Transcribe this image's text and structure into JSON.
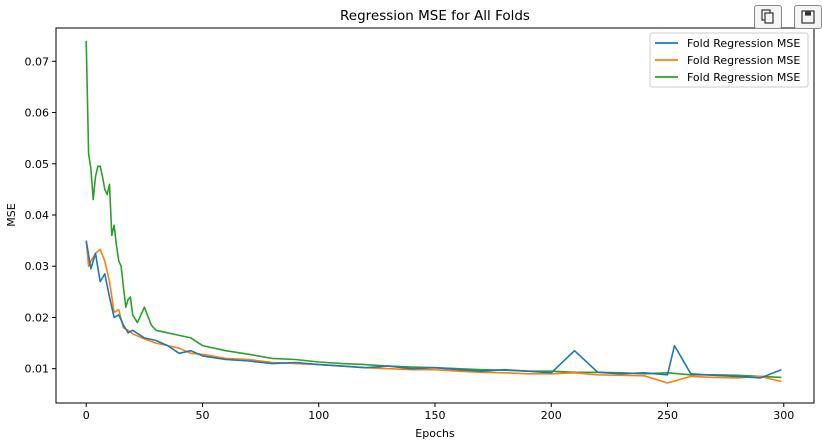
{
  "toolbar": {
    "copy_icon": "copy-icon",
    "save_icon": "floppy-disk-icon"
  },
  "chart_data": {
    "type": "line",
    "title": "Regression MSE for All Folds",
    "xlabel": "Epochs",
    "ylabel": "MSE",
    "xlim": [
      -13,
      313
    ],
    "ylim": [
      0.0033,
      0.0765
    ],
    "xticks": [
      0,
      50,
      100,
      150,
      200,
      250,
      300
    ],
    "xtick_labels": [
      "0",
      "50",
      "100",
      "150",
      "200",
      "250",
      "300"
    ],
    "yticks": [
      0.01,
      0.02,
      0.03,
      0.04,
      0.05,
      0.06,
      0.07
    ],
    "ytick_labels": [
      "0.01",
      "0.02",
      "0.03",
      "0.04",
      "0.05",
      "0.06",
      "0.07"
    ],
    "grid": false,
    "legend_position": "top-right",
    "series": [
      {
        "name": "Fold Regression MSE",
        "color": "#1f77b4",
        "x": [
          0,
          2,
          4,
          6,
          8,
          10,
          12,
          14,
          16,
          18,
          20,
          25,
          30,
          35,
          40,
          45,
          50,
          60,
          70,
          80,
          90,
          100,
          110,
          120,
          130,
          140,
          150,
          160,
          170,
          180,
          190,
          200,
          210,
          220,
          230,
          240,
          250,
          253,
          260,
          270,
          280,
          290,
          299
        ],
        "y": [
          0.035,
          0.0295,
          0.0325,
          0.027,
          0.0285,
          0.024,
          0.02,
          0.0205,
          0.0185,
          0.017,
          0.0175,
          0.016,
          0.0155,
          0.0145,
          0.013,
          0.0135,
          0.0125,
          0.0118,
          0.0115,
          0.011,
          0.0112,
          0.0108,
          0.0105,
          0.0102,
          0.0105,
          0.01,
          0.0102,
          0.0098,
          0.0095,
          0.0098,
          0.0095,
          0.0092,
          0.0135,
          0.0093,
          0.009,
          0.0092,
          0.0088,
          0.0145,
          0.009,
          0.0087,
          0.0085,
          0.0082,
          0.0098
        ]
      },
      {
        "name": "Fold Regression MSE",
        "color": "#ff7f0e",
        "x": [
          0,
          1,
          2,
          4,
          6,
          8,
          10,
          12,
          14,
          16,
          18,
          20,
          25,
          30,
          35,
          40,
          45,
          50,
          60,
          70,
          80,
          90,
          100,
          110,
          120,
          130,
          140,
          150,
          160,
          170,
          180,
          190,
          200,
          210,
          220,
          230,
          240,
          250,
          260,
          270,
          280,
          290,
          299
        ],
        "y": [
          0.035,
          0.03,
          0.031,
          0.0325,
          0.0333,
          0.031,
          0.027,
          0.021,
          0.0215,
          0.018,
          0.0175,
          0.0168,
          0.0158,
          0.015,
          0.0145,
          0.014,
          0.013,
          0.0128,
          0.012,
          0.0118,
          0.0112,
          0.011,
          0.0108,
          0.0105,
          0.0102,
          0.01,
          0.0098,
          0.0098,
          0.0095,
          0.0093,
          0.0092,
          0.009,
          0.009,
          0.0092,
          0.0088,
          0.0087,
          0.0086,
          0.0072,
          0.0085,
          0.0083,
          0.0082,
          0.0085,
          0.0075
        ]
      },
      {
        "name": "Fold Regression MSE",
        "color": "#2ca02c",
        "x": [
          0,
          1,
          2,
          3,
          4,
          5,
          6,
          7,
          8,
          9,
          10,
          11,
          12,
          13,
          14,
          15,
          16,
          17,
          18,
          19,
          20,
          22,
          25,
          28,
          30,
          35,
          40,
          45,
          50,
          60,
          70,
          80,
          90,
          100,
          110,
          120,
          130,
          140,
          150,
          160,
          170,
          180,
          190,
          200,
          210,
          220,
          230,
          240,
          250,
          260,
          270,
          280,
          290,
          299
        ],
        "y": [
          0.074,
          0.052,
          0.049,
          0.043,
          0.0475,
          0.0495,
          0.0495,
          0.0475,
          0.045,
          0.044,
          0.046,
          0.036,
          0.038,
          0.034,
          0.031,
          0.03,
          0.026,
          0.022,
          0.0235,
          0.024,
          0.0205,
          0.019,
          0.022,
          0.0185,
          0.0175,
          0.017,
          0.0165,
          0.016,
          0.0145,
          0.0135,
          0.0128,
          0.012,
          0.0118,
          0.0113,
          0.011,
          0.0108,
          0.0105,
          0.0103,
          0.0102,
          0.01,
          0.0098,
          0.0097,
          0.0095,
          0.0095,
          0.0093,
          0.0093,
          0.0092,
          0.009,
          0.0092,
          0.0088,
          0.0088,
          0.0087,
          0.0085,
          0.0083
        ]
      }
    ]
  }
}
